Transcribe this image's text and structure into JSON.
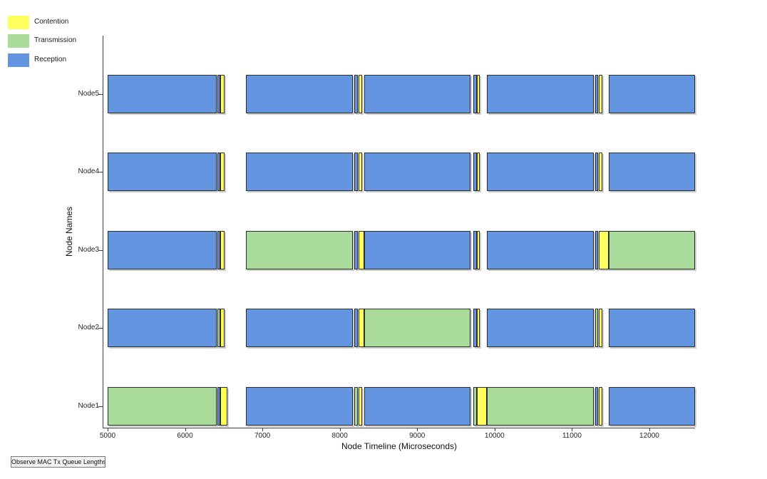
{
  "legend": {
    "items": [
      {
        "label": "Contention",
        "color": "#FFFF5E"
      },
      {
        "label": "Transmission",
        "color": "#A9DB9B"
      },
      {
        "label": "Reception",
        "color": "#6495E0"
      }
    ]
  },
  "axes": {
    "x_label": "Node Timeline (Microseconds)",
    "y_label": "Node Names",
    "x_ticks": [
      5000,
      6000,
      7000,
      8000,
      9000,
      10000,
      11000,
      12000
    ],
    "x_min": 4945,
    "x_max": 12590,
    "y_tick_labels": [
      "Node5",
      "Node4",
      "Node3",
      "Node2",
      "Node1"
    ]
  },
  "button": {
    "label": "Observe MAC Tx Queue Lengths"
  },
  "chart_data": {
    "type": "timeline",
    "title": "",
    "xlabel": "Node Timeline (Microseconds)",
    "ylabel": "Node Names",
    "xlim": [
      4945,
      12590
    ],
    "legend_position": "top-left",
    "grid": false,
    "states": {
      "contention": "#FFFF5E",
      "transmission": "#A9DB9B",
      "reception": "#6495E0"
    },
    "rows": [
      {
        "name": "Node5",
        "segments": [
          [
            5000,
            6410,
            "reception"
          ],
          [
            6420,
            6455,
            "reception"
          ],
          [
            6460,
            6515,
            "contention"
          ],
          [
            6790,
            8170,
            "reception"
          ],
          [
            8190,
            8230,
            "reception"
          ],
          [
            8240,
            8290,
            "contention"
          ],
          [
            8320,
            9690,
            "reception"
          ],
          [
            9730,
            9770,
            "reception"
          ],
          [
            9775,
            9810,
            "contention"
          ],
          [
            9900,
            11280,
            "reception"
          ],
          [
            11300,
            11340,
            "reception"
          ],
          [
            11345,
            11390,
            "contention"
          ],
          [
            11480,
            12590,
            "reception"
          ]
        ]
      },
      {
        "name": "Node4",
        "segments": [
          [
            5000,
            6410,
            "reception"
          ],
          [
            6420,
            6455,
            "reception"
          ],
          [
            6460,
            6515,
            "contention"
          ],
          [
            6790,
            8170,
            "reception"
          ],
          [
            8190,
            8230,
            "reception"
          ],
          [
            8240,
            8290,
            "contention"
          ],
          [
            8320,
            9690,
            "reception"
          ],
          [
            9730,
            9770,
            "reception"
          ],
          [
            9775,
            9810,
            "contention"
          ],
          [
            9900,
            11280,
            "reception"
          ],
          [
            11300,
            11340,
            "reception"
          ],
          [
            11345,
            11390,
            "contention"
          ],
          [
            11480,
            12590,
            "reception"
          ]
        ]
      },
      {
        "name": "Node3",
        "segments": [
          [
            5000,
            6410,
            "reception"
          ],
          [
            6420,
            6455,
            "reception"
          ],
          [
            6460,
            6515,
            "contention"
          ],
          [
            6790,
            8170,
            "transmission"
          ],
          [
            8190,
            8230,
            "reception"
          ],
          [
            8240,
            8320,
            "contention"
          ],
          [
            8320,
            9690,
            "reception"
          ],
          [
            9730,
            9770,
            "reception"
          ],
          [
            9775,
            9810,
            "contention"
          ],
          [
            9900,
            11280,
            "reception"
          ],
          [
            11300,
            11340,
            "reception"
          ],
          [
            11345,
            11480,
            "contention"
          ],
          [
            11480,
            12590,
            "transmission"
          ]
        ]
      },
      {
        "name": "Node2",
        "segments": [
          [
            5000,
            6410,
            "reception"
          ],
          [
            6420,
            6455,
            "transmission"
          ],
          [
            6460,
            6515,
            "contention"
          ],
          [
            6790,
            8170,
            "reception"
          ],
          [
            8190,
            8230,
            "reception"
          ],
          [
            8240,
            8320,
            "contention"
          ],
          [
            8320,
            9690,
            "transmission"
          ],
          [
            9730,
            9770,
            "reception"
          ],
          [
            9775,
            9810,
            "contention"
          ],
          [
            9900,
            11280,
            "reception"
          ],
          [
            11300,
            11340,
            "transmission"
          ],
          [
            11345,
            11390,
            "contention"
          ],
          [
            11480,
            12590,
            "reception"
          ]
        ]
      },
      {
        "name": "Node1",
        "segments": [
          [
            5000,
            6410,
            "transmission"
          ],
          [
            6420,
            6455,
            "reception"
          ],
          [
            6460,
            6545,
            "contention"
          ],
          [
            6790,
            8170,
            "reception"
          ],
          [
            8190,
            8230,
            "transmission"
          ],
          [
            8240,
            8290,
            "contention"
          ],
          [
            8320,
            9690,
            "reception"
          ],
          [
            9730,
            9770,
            "transmission"
          ],
          [
            9775,
            9900,
            "contention"
          ],
          [
            9900,
            11280,
            "transmission"
          ],
          [
            11300,
            11340,
            "reception"
          ],
          [
            11345,
            11390,
            "contention"
          ],
          [
            11480,
            12590,
            "reception"
          ]
        ]
      }
    ]
  }
}
